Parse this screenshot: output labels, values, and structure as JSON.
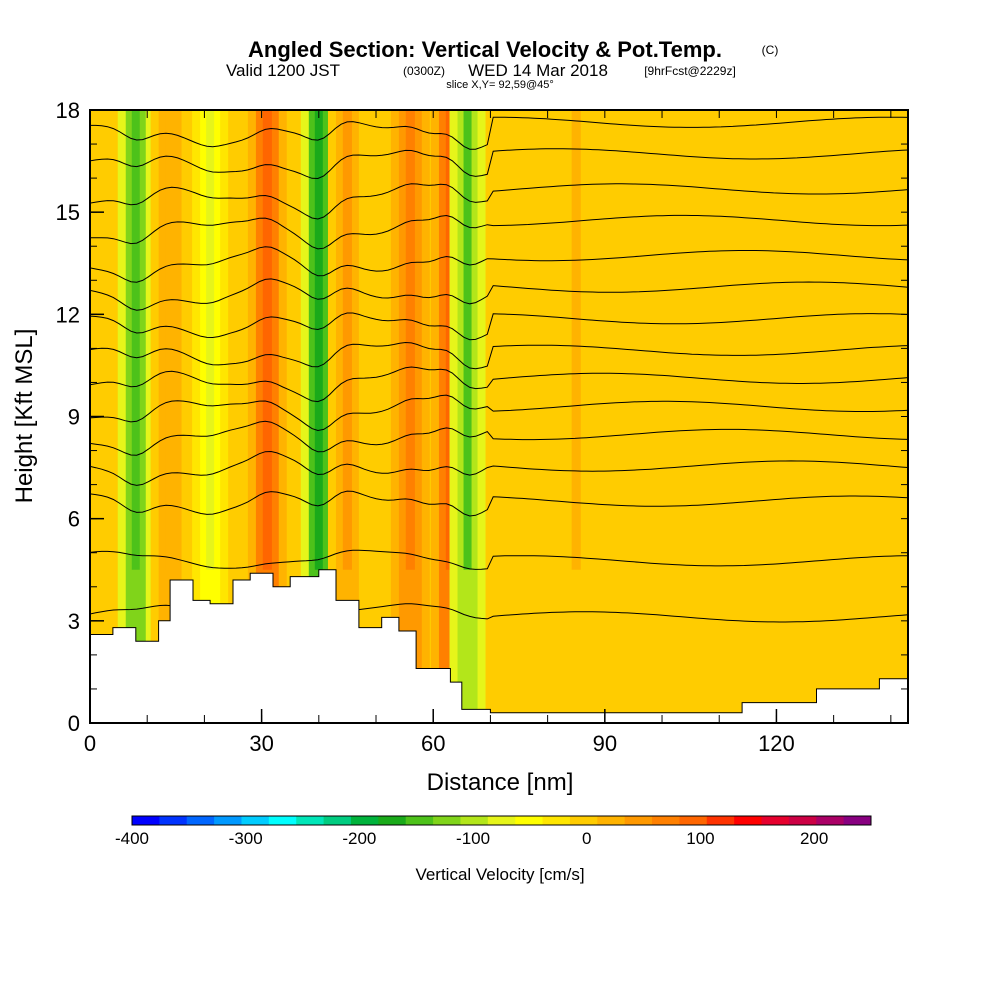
{
  "title": {
    "main": "Angled Section: Vertical Velocity & Pot.Temp.",
    "copyright": "(C)",
    "valid_prefix": "Valid 1200 JST",
    "utc_time": "(0300Z)",
    "valid_date": "WED 14 Mar 2018",
    "forecast": "[9hrFcst@2229z]",
    "slice": "slice X,Y= 92,59@45°"
  },
  "chart_data": {
    "type": "heatmap",
    "title": "Angled Section: Vertical Velocity & Pot.Temp.",
    "xlabel": "Distance [nm]",
    "ylabel": "Height [Kft MSL]",
    "xlim": [
      0,
      143
    ],
    "ylim": [
      0,
      18
    ],
    "x_ticks": [
      "0",
      "30",
      "60",
      "90",
      "120"
    ],
    "y_ticks": [
      "0",
      "3",
      "6",
      "9",
      "12",
      "15",
      "18"
    ],
    "colorbar": {
      "title": "Vertical Velocity [cm/s]",
      "range": [
        -400,
        250
      ],
      "step": 25,
      "tick_labels": [
        "-400",
        "-300",
        "-200",
        "-100",
        "0",
        "100",
        "200"
      ],
      "tick_values": [
        -400,
        -300,
        -200,
        -100,
        0,
        100,
        200
      ],
      "colors": [
        "#0000ff",
        "#0033ff",
        "#0066ff",
        "#0099ff",
        "#00ccff",
        "#00ffff",
        "#00e6b8",
        "#00cc80",
        "#00b33c",
        "#1aaa1a",
        "#4dc21a",
        "#80d41a",
        "#b3e61a",
        "#e6f51a",
        "#ffff00",
        "#ffe600",
        "#ffcc00",
        "#ffb300",
        "#ff9900",
        "#ff8000",
        "#ff6600",
        "#ff3300",
        "#ff0000",
        "#e6002e",
        "#cc0044",
        "#aa0066",
        "#880080"
      ]
    },
    "vertical_velocity_bands": [
      {
        "x": 8,
        "value": -140
      },
      {
        "x": 14,
        "value": 40
      },
      {
        "x": 21,
        "value": -60
      },
      {
        "x": 31,
        "value": 110
      },
      {
        "x": 40,
        "value": -170
      },
      {
        "x": 45,
        "value": 60
      },
      {
        "x": 56,
        "value": 90
      },
      {
        "x": 63,
        "value": 120
      },
      {
        "x": 66,
        "value": -130
      },
      {
        "x": 85,
        "value": 30
      },
      {
        "x": 105,
        "value": 20
      },
      {
        "x": 130,
        "value": 15
      }
    ],
    "isotherm_heights_kft": [
      3.2,
      4.8,
      6.5,
      7.5,
      8.4,
      9.2,
      10.0,
      10.8,
      11.7,
      12.6,
      13.5,
      14.5,
      15.4,
      16.4,
      17.3
    ],
    "terrain_kft": [
      [
        0,
        2.6
      ],
      [
        4,
        2.8
      ],
      [
        8,
        2.4
      ],
      [
        12,
        3.0
      ],
      [
        14,
        4.2
      ],
      [
        18,
        3.6
      ],
      [
        21,
        3.5
      ],
      [
        25,
        4.2
      ],
      [
        28,
        4.4
      ],
      [
        32,
        4.0
      ],
      [
        35,
        4.3
      ],
      [
        40,
        4.5
      ],
      [
        43,
        3.6
      ],
      [
        47,
        2.8
      ],
      [
        51,
        3.1
      ],
      [
        54,
        2.7
      ],
      [
        57,
        1.6
      ],
      [
        60,
        1.6
      ],
      [
        63,
        1.2
      ],
      [
        65,
        0.4
      ],
      [
        70,
        0.3
      ],
      [
        90,
        0.3
      ],
      [
        100,
        0.3
      ],
      [
        113,
        0.3
      ],
      [
        114,
        0.6
      ],
      [
        125,
        0.6
      ],
      [
        127,
        1.0
      ],
      [
        137,
        1.0
      ],
      [
        138,
        1.3
      ],
      [
        143,
        1.3
      ]
    ],
    "legend": "bottom"
  }
}
